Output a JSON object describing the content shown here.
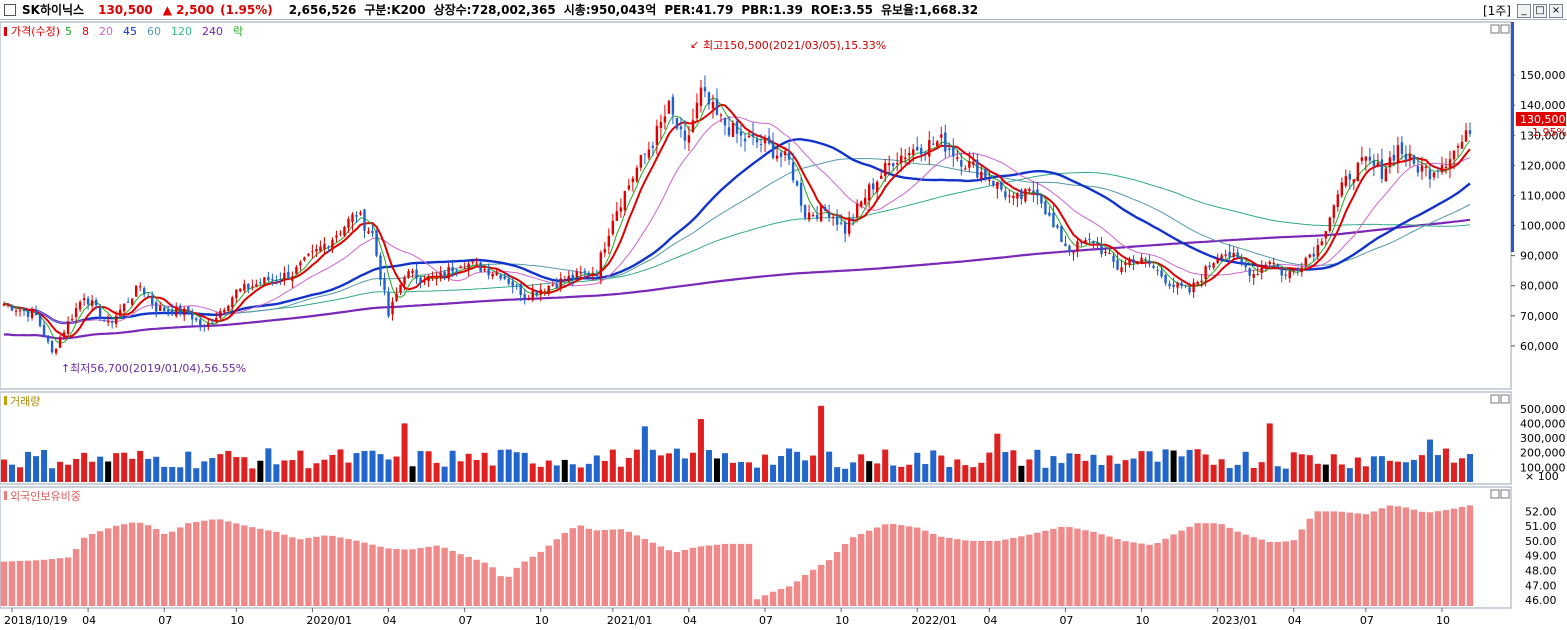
{
  "header": {
    "stock_name": "SK하이닉스",
    "price": "130,500",
    "change": "▲ 2,500",
    "change_pct": "(1.95%)",
    "volume": "2,656,526",
    "division": "구분:K200",
    "listed_shares": "상장수:728,002,365",
    "market_cap": "시총:950,043억",
    "per": "PER:41.79",
    "pbr": "PBR:1.39",
    "roe": "ROE:3.55",
    "float_ratio": "유보율:1,668.32",
    "period": "[1주]",
    "buttons": [
      "_",
      "□",
      "×"
    ]
  },
  "price_panel": {
    "legend": [
      {
        "label": "가격(수정)",
        "color": "#e00000"
      },
      {
        "label": "5",
        "color": "#22aa22"
      },
      {
        "label": "8",
        "color": "#e00000"
      },
      {
        "label": "20",
        "color": "#cc66cc"
      },
      {
        "label": "45",
        "color": "#1133cc"
      },
      {
        "label": "60",
        "color": "#5599aa"
      },
      {
        "label": "120",
        "color": "#33bb88"
      },
      {
        "label": "240",
        "color": "#7722aa"
      },
      {
        "label": "락",
        "color": "#22aa22"
      }
    ],
    "high_annotation": "최고150,500(2021/03/05),15.33%",
    "low_annotation": "최저56,700(2019/01/04),56.55%",
    "current_price_tag": "130,500",
    "current_pct_tag": "1.95%"
  },
  "volume_panel": {
    "title": "거래량",
    "unit": "× 100"
  },
  "foreign_panel": {
    "title": "외국인보유비중"
  },
  "x_axis_labels": [
    "2018/10/19",
    "04",
    "07",
    "10",
    "2020/01",
    "04",
    "07",
    "10",
    "2021/01",
    "04",
    "07",
    "10",
    "2022/01",
    "04",
    "07",
    "10",
    "2023/01",
    "04",
    "07",
    "10"
  ],
  "chart_data": [
    {
      "type": "candlestick",
      "title": "가격(수정) weekly",
      "y_ticks": [
        60000,
        70000,
        80000,
        90000,
        100000,
        110000,
        120000,
        130000,
        140000,
        150000
      ],
      "y_tick_labels": [
        "60,000",
        "70,000",
        "80,000",
        "90,000",
        "100,000",
        "110,000",
        "120,000",
        "130,000",
        "140,000",
        "150,000"
      ],
      "ylim": [
        47000,
        163000
      ],
      "close_anchors": [
        [
          0,
          74000
        ],
        [
          8,
          70000
        ],
        [
          12,
          57500
        ],
        [
          14,
          63000
        ],
        [
          20,
          77000
        ],
        [
          26,
          67000
        ],
        [
          34,
          80000
        ],
        [
          38,
          72500
        ],
        [
          46,
          71000
        ],
        [
          50,
          65500
        ],
        [
          58,
          78000
        ],
        [
          66,
          82000
        ],
        [
          72,
          84000
        ],
        [
          82,
          96000
        ],
        [
          88,
          104000
        ],
        [
          92,
          97000
        ],
        [
          96,
          70000
        ],
        [
          100,
          84000
        ],
        [
          108,
          82000
        ],
        [
          114,
          88000
        ],
        [
          124,
          84000
        ],
        [
          130,
          77000
        ],
        [
          140,
          82000
        ],
        [
          148,
          85000
        ],
        [
          152,
          103000
        ],
        [
          158,
          119000
        ],
        [
          162,
          128000
        ],
        [
          166,
          139000
        ],
        [
          170,
          126000
        ],
        [
          174,
          144000
        ],
        [
          178,
          136000
        ],
        [
          184,
          129000
        ],
        [
          190,
          127000
        ],
        [
          196,
          121000
        ],
        [
          200,
          104000
        ],
        [
          206,
          105000
        ],
        [
          210,
          98500
        ],
        [
          216,
          112000
        ],
        [
          222,
          122000
        ],
        [
          228,
          126000
        ],
        [
          234,
          128000
        ],
        [
          240,
          121000
        ],
        [
          246,
          116000
        ],
        [
          252,
          108000
        ],
        [
          258,
          112000
        ],
        [
          262,
          99000
        ],
        [
          266,
          92000
        ],
        [
          272,
          95000
        ],
        [
          278,
          86000
        ],
        [
          282,
          89000
        ],
        [
          286,
          87000
        ],
        [
          292,
          80000
        ],
        [
          296,
          78000
        ],
        [
          300,
          85000
        ],
        [
          304,
          92000
        ],
        [
          308,
          88000
        ],
        [
          312,
          84000
        ],
        [
          316,
          89000
        ],
        [
          320,
          83000
        ],
        [
          324,
          88000
        ],
        [
          328,
          93000
        ],
        [
          332,
          107000
        ],
        [
          336,
          117000
        ],
        [
          340,
          121000
        ],
        [
          344,
          118000
        ],
        [
          348,
          126000
        ],
        [
          352,
          120000
        ],
        [
          356,
          118000
        ],
        [
          360,
          122000
        ],
        [
          366,
          130500
        ]
      ],
      "moving_averages": [
        "5",
        "8",
        "20",
        "45",
        "60",
        "120",
        "240"
      ],
      "last_close": 130500
    },
    {
      "type": "bar",
      "title": "거래량",
      "y_ticks": [
        100000,
        200000,
        300000,
        400000,
        500000
      ],
      "y_tick_labels": [
        "100,000",
        "200,000",
        "300,000",
        "400,000",
        "500,000"
      ],
      "ylim": [
        0,
        560000
      ]
    },
    {
      "type": "bar",
      "title": "외국인보유비중",
      "y_ticks": [
        46,
        47,
        48,
        49,
        50,
        51,
        52
      ],
      "y_tick_labels": [
        "46.00",
        "47.00",
        "48.00",
        "49.00",
        "50.00",
        "51.00",
        "52.00"
      ],
      "ylim": [
        45.6,
        52.9
      ],
      "anchors": [
        [
          0,
          48.6
        ],
        [
          10,
          48.7
        ],
        [
          18,
          48.9
        ],
        [
          22,
          50.3
        ],
        [
          30,
          51.0
        ],
        [
          36,
          51.3
        ],
        [
          40,
          51.0
        ],
        [
          44,
          50.4
        ],
        [
          50,
          51.2
        ],
        [
          58,
          51.5
        ],
        [
          66,
          51.0
        ],
        [
          74,
          50.6
        ],
        [
          80,
          50.1
        ],
        [
          88,
          50.4
        ],
        [
          96,
          50.0
        ],
        [
          104,
          49.5
        ],
        [
          110,
          49.4
        ],
        [
          118,
          49.7
        ],
        [
          124,
          49.1
        ],
        [
          132,
          48.4
        ],
        [
          136,
          47.3
        ],
        [
          140,
          48.4
        ],
        [
          146,
          49.3
        ],
        [
          152,
          50.5
        ],
        [
          156,
          51.1
        ],
        [
          160,
          50.7
        ],
        [
          168,
          50.8
        ],
        [
          176,
          49.9
        ],
        [
          182,
          49.2
        ],
        [
          188,
          49.6
        ],
        [
          196,
          49.8
        ],
        [
          203,
          49.8
        ],
        [
          204,
          46.0
        ],
        [
          208,
          46.5
        ],
        [
          214,
          47.0
        ],
        [
          218,
          47.8
        ],
        [
          224,
          48.7
        ],
        [
          230,
          50.2
        ],
        [
          240,
          51.2
        ],
        [
          248,
          50.9
        ],
        [
          254,
          50.3
        ],
        [
          262,
          50.0
        ],
        [
          270,
          50.0
        ],
        [
          278,
          50.4
        ],
        [
          288,
          51.0
        ],
        [
          296,
          50.6
        ],
        [
          304,
          50.0
        ],
        [
          312,
          49.7
        ],
        [
          318,
          50.5
        ],
        [
          324,
          51.2
        ],
        [
          330,
          51.2
        ],
        [
          336,
          50.5
        ],
        [
          344,
          49.9
        ],
        [
          350,
          50.0
        ],
        [
          356,
          52.0
        ],
        [
          362,
          52.0
        ],
        [
          370,
          51.8
        ],
        [
          376,
          52.4
        ],
        [
          380,
          52.3
        ],
        [
          386,
          51.9
        ],
        [
          392,
          52.1
        ],
        [
          398,
          52.4
        ]
      ]
    }
  ]
}
